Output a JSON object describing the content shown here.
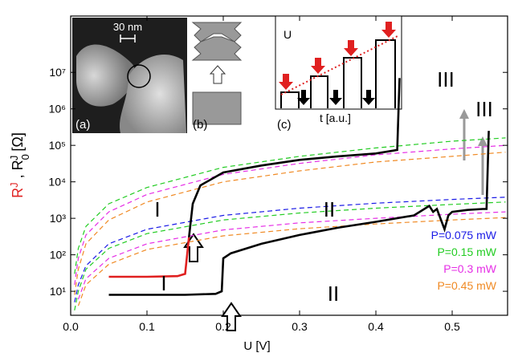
{
  "chart_data": {
    "type": "line",
    "xlabel": "U [V]",
    "ylabel": [
      "R",
      "J",
      " , R",
      "0",
      "J",
      " [Ω]"
    ],
    "xlim": [
      0,
      0.5726
    ],
    "xticks": [
      {
        "value": 0,
        "label": "0.0"
      },
      0.1,
      0.2,
      0.3,
      0.4,
      0.5
    ],
    "ylim": [
      2.2,
      350000000
    ],
    "yticks": [
      {
        "value": 10,
        "label": "10¹"
      },
      {
        "value": 100,
        "label": "10²"
      },
      {
        "value": 1000,
        "label": "10³"
      },
      {
        "value": 10000,
        "label": "10⁴"
      },
      {
        "value": 100000,
        "label": "10⁵"
      },
      {
        "value": 1000000,
        "label": "10⁶"
      },
      {
        "value": 10000000,
        "label": "10⁷"
      }
    ],
    "log_y": true,
    "legend": "lower right",
    "series": [
      {
        "name": "P=0.075 mW",
        "color": "#1a1ae6",
        "dashed": true,
        "x": [
          0.005,
          0.01,
          0.02,
          0.05,
          0.1,
          0.2,
          0.3,
          0.4,
          0.5,
          0.57
        ],
        "values": [
          5,
          15,
          50,
          200,
          500,
          1200,
          1900,
          2600,
          3300,
          3800
        ]
      },
      {
        "name": "P=0.15 mW",
        "color": "#22cc22",
        "dashed": true,
        "x": [
          0.005,
          0.01,
          0.02,
          0.05,
          0.1,
          0.2,
          0.3,
          0.4,
          0.5,
          0.57
        ],
        "values": [
          3,
          10,
          40,
          150,
          380,
          900,
          1400,
          1900,
          2400,
          2800
        ]
      },
      {
        "name": "P=0.3 mW",
        "color": "#e62ee6",
        "dashed": true,
        "x": [
          0.01,
          0.02,
          0.05,
          0.1,
          0.2,
          0.3,
          0.4,
          0.5,
          0.57
        ],
        "values": [
          6,
          22,
          80,
          200,
          480,
          750,
          1000,
          1300,
          1500
        ]
      },
      {
        "name": "P=0.45 mW",
        "color": "#f08a24",
        "dashed": true,
        "x": [
          0.01,
          0.02,
          0.05,
          0.1,
          0.2,
          0.3,
          0.4,
          0.5,
          0.57
        ],
        "values": [
          4,
          15,
          55,
          140,
          330,
          520,
          700,
          900,
          1050
        ]
      },
      {
        "color": "#22cc22",
        "dashed": true,
        "x": [
          0.005,
          0.01,
          0.02,
          0.05,
          0.1,
          0.2,
          0.3,
          0.4,
          0.5,
          0.57
        ],
        "values": [
          30,
          150,
          600,
          2500,
          7000,
          25000,
          50000,
          85000,
          130000,
          160000
        ]
      },
      {
        "color": "#e62ee6",
        "dashed": true,
        "x": [
          0.005,
          0.01,
          0.02,
          0.05,
          0.1,
          0.2,
          0.3,
          0.4,
          0.5,
          0.57
        ],
        "values": [
          15,
          80,
          350,
          1500,
          4500,
          16000,
          32000,
          55000,
          80000,
          100000
        ]
      },
      {
        "color": "#f08a24",
        "dashed": true,
        "x": [
          0.005,
          0.01,
          0.02,
          0.05,
          0.1,
          0.2,
          0.3,
          0.4,
          0.5,
          0.57
        ],
        "values": [
          8,
          40,
          200,
          900,
          2800,
          10000,
          20000,
          35000,
          50000,
          65000
        ]
      },
      {
        "color": "#e02020",
        "x": [
          0.05,
          0.1,
          0.14,
          0.15,
          0.155
        ],
        "values": [
          25,
          25,
          26,
          30,
          300
        ]
      },
      {
        "color": "#000000",
        "x": [
          0.155,
          0.16,
          0.17,
          0.2,
          0.25,
          0.3,
          0.35,
          0.4,
          0.42,
          0.428,
          0.431
        ],
        "values": [
          300,
          2500,
          8000,
          18000,
          28000,
          40000,
          50000,
          60000,
          70000,
          75000,
          7000000
        ]
      },
      {
        "color": "#000000",
        "x": [
          0.05,
          0.1,
          0.15,
          0.19,
          0.198,
          0.2,
          0.21,
          0.25,
          0.3,
          0.35,
          0.4,
          0.45,
          0.47,
          0.475,
          0.48,
          0.49,
          0.495,
          0.5,
          0.52,
          0.54,
          0.545,
          0.548
        ],
        "values": [
          8,
          8,
          8,
          8.5,
          10,
          80,
          110,
          200,
          350,
          550,
          800,
          1200,
          2200,
          1500,
          1800,
          500,
          1200,
          1500,
          1700,
          1800,
          1800,
          250000
        ]
      }
    ],
    "annotations": [
      "I",
      "I",
      "II",
      "II",
      "III",
      "III",
      "30 nm",
      "(a)",
      "(b)",
      "U",
      "t [a.u.]",
      "(c)"
    ]
  }
}
